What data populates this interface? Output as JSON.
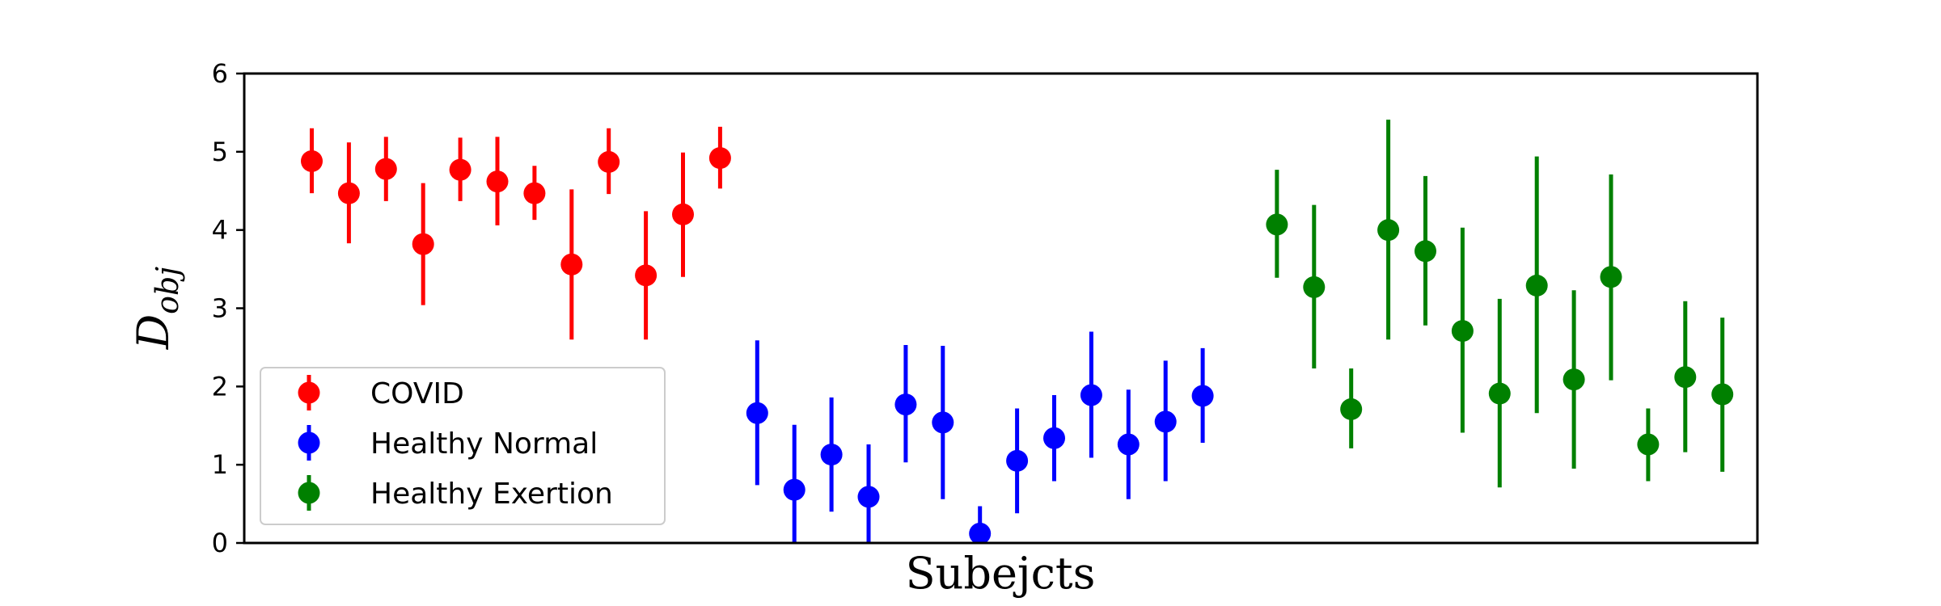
{
  "chart_data": {
    "type": "scatter",
    "xlabel": "Subejcts",
    "ylabel": "D",
    "ylabel_subscript": "obj",
    "ylim": [
      0,
      6
    ],
    "yticks": [
      "0",
      "1",
      "2",
      "3",
      "4",
      "5",
      "6"
    ],
    "legend_position": "lower-left",
    "grid": false,
    "series": [
      {
        "name": "COVID",
        "color": "#ff0000",
        "x": [
          1,
          2,
          3,
          4,
          5,
          6,
          7,
          8,
          9,
          10,
          11,
          12
        ],
        "y": [
          4.88,
          4.47,
          4.78,
          3.82,
          4.77,
          4.62,
          4.47,
          3.56,
          4.87,
          3.42,
          4.2,
          4.92
        ],
        "err_low": [
          4.47,
          3.83,
          4.37,
          3.04,
          4.37,
          4.06,
          4.13,
          2.6,
          4.46,
          2.6,
          3.4,
          4.53
        ],
        "err_high": [
          5.3,
          5.12,
          5.19,
          4.6,
          5.18,
          5.19,
          4.82,
          4.52,
          5.3,
          4.24,
          4.99,
          5.32
        ]
      },
      {
        "name": "Healthy Normal",
        "color": "#0000ff",
        "x": [
          13,
          14,
          15,
          16,
          17,
          18,
          19,
          20,
          21,
          22,
          23,
          24,
          25
        ],
        "y": [
          1.66,
          0.68,
          1.13,
          0.59,
          1.77,
          1.54,
          0.12,
          1.05,
          1.34,
          1.89,
          1.26,
          1.55,
          1.88
        ],
        "err_low": [
          0.74,
          0.0,
          0.4,
          0.0,
          1.03,
          0.56,
          0.0,
          0.38,
          0.79,
          1.09,
          0.56,
          0.79,
          1.28
        ],
        "err_high": [
          2.59,
          1.51,
          1.86,
          1.26,
          2.53,
          2.52,
          0.47,
          1.72,
          1.89,
          2.7,
          1.96,
          2.33,
          2.49
        ]
      },
      {
        "name": "Healthy Exertion",
        "color": "#008000",
        "x": [
          27,
          28,
          29,
          30,
          31,
          32,
          33,
          34,
          35,
          36,
          37,
          38,
          39
        ],
        "y": [
          4.07,
          3.27,
          1.71,
          4.0,
          3.73,
          2.71,
          1.91,
          3.29,
          2.09,
          3.4,
          1.26,
          2.12,
          1.9
        ],
        "err_low": [
          3.39,
          2.23,
          1.21,
          2.6,
          2.78,
          1.41,
          0.71,
          1.66,
          0.95,
          2.08,
          0.79,
          1.16,
          0.91
        ],
        "err_high": [
          4.77,
          4.32,
          2.23,
          5.41,
          4.69,
          4.03,
          3.12,
          4.94,
          3.23,
          4.71,
          1.72,
          3.09,
          2.88
        ]
      }
    ]
  }
}
